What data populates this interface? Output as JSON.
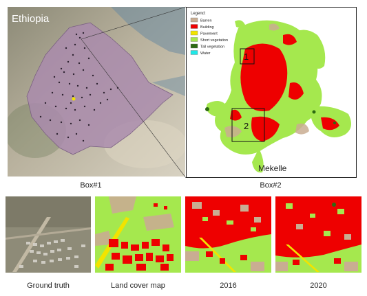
{
  "country_label": "Ethiopia",
  "city_label": "Mekelle",
  "legend": {
    "title": "Legend:",
    "items": [
      {
        "label": "Barren",
        "color": "#c9ad92"
      },
      {
        "label": "Building",
        "color": "#ee0000"
      },
      {
        "label": "Pavement",
        "color": "#f2e400"
      },
      {
        "label": "Short vegetation",
        "color": "#a5e84e"
      },
      {
        "label": "Tall vegetation",
        "color": "#2c6a12"
      },
      {
        "label": "Water",
        "color": "#1ee8e8"
      }
    ]
  },
  "box_markers": [
    "1",
    "2"
  ],
  "box_titles": [
    "Box#1",
    "Box#2"
  ],
  "panel_captions": [
    "Ground truth",
    "Land cover map",
    "2016",
    "2020"
  ],
  "colors": {
    "ethiopia_fill": "#a98aad",
    "barren": "#c9ad92",
    "building": "#ee0000",
    "pavement": "#f2e400",
    "short_vegetation": "#a5e84e",
    "tall_vegetation": "#2c6a12"
  }
}
